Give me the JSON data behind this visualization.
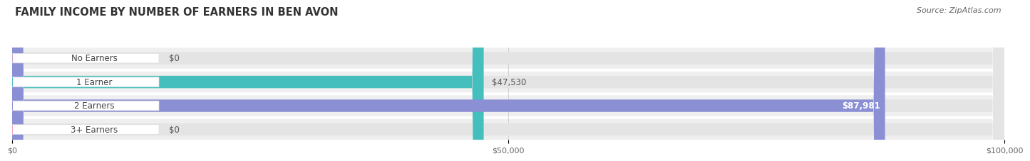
{
  "title": "FAMILY INCOME BY NUMBER OF EARNERS IN BEN AVON",
  "source": "Source: ZipAtlas.com",
  "categories": [
    "No Earners",
    "1 Earner",
    "2 Earners",
    "3+ Earners"
  ],
  "values": [
    0,
    47530,
    87981,
    0
  ],
  "max_value": 100000,
  "bar_colors": [
    "#c9a0d0",
    "#45bfbe",
    "#8b8fd4",
    "#f2a0bb"
  ],
  "value_labels": [
    "$0",
    "$47,530",
    "$87,981",
    "$0"
  ],
  "value_label_inside": [
    false,
    false,
    true,
    false
  ],
  "x_ticks": [
    0,
    50000,
    100000
  ],
  "x_tick_labels": [
    "$0",
    "$50,000",
    "$100,000"
  ],
  "background_color": "#ffffff",
  "row_bg_color": "#efefef",
  "bar_bg_color": "#e4e4e4",
  "title_fontsize": 10.5,
  "source_fontsize": 8,
  "label_fontsize": 8.5,
  "value_fontsize": 8.5
}
